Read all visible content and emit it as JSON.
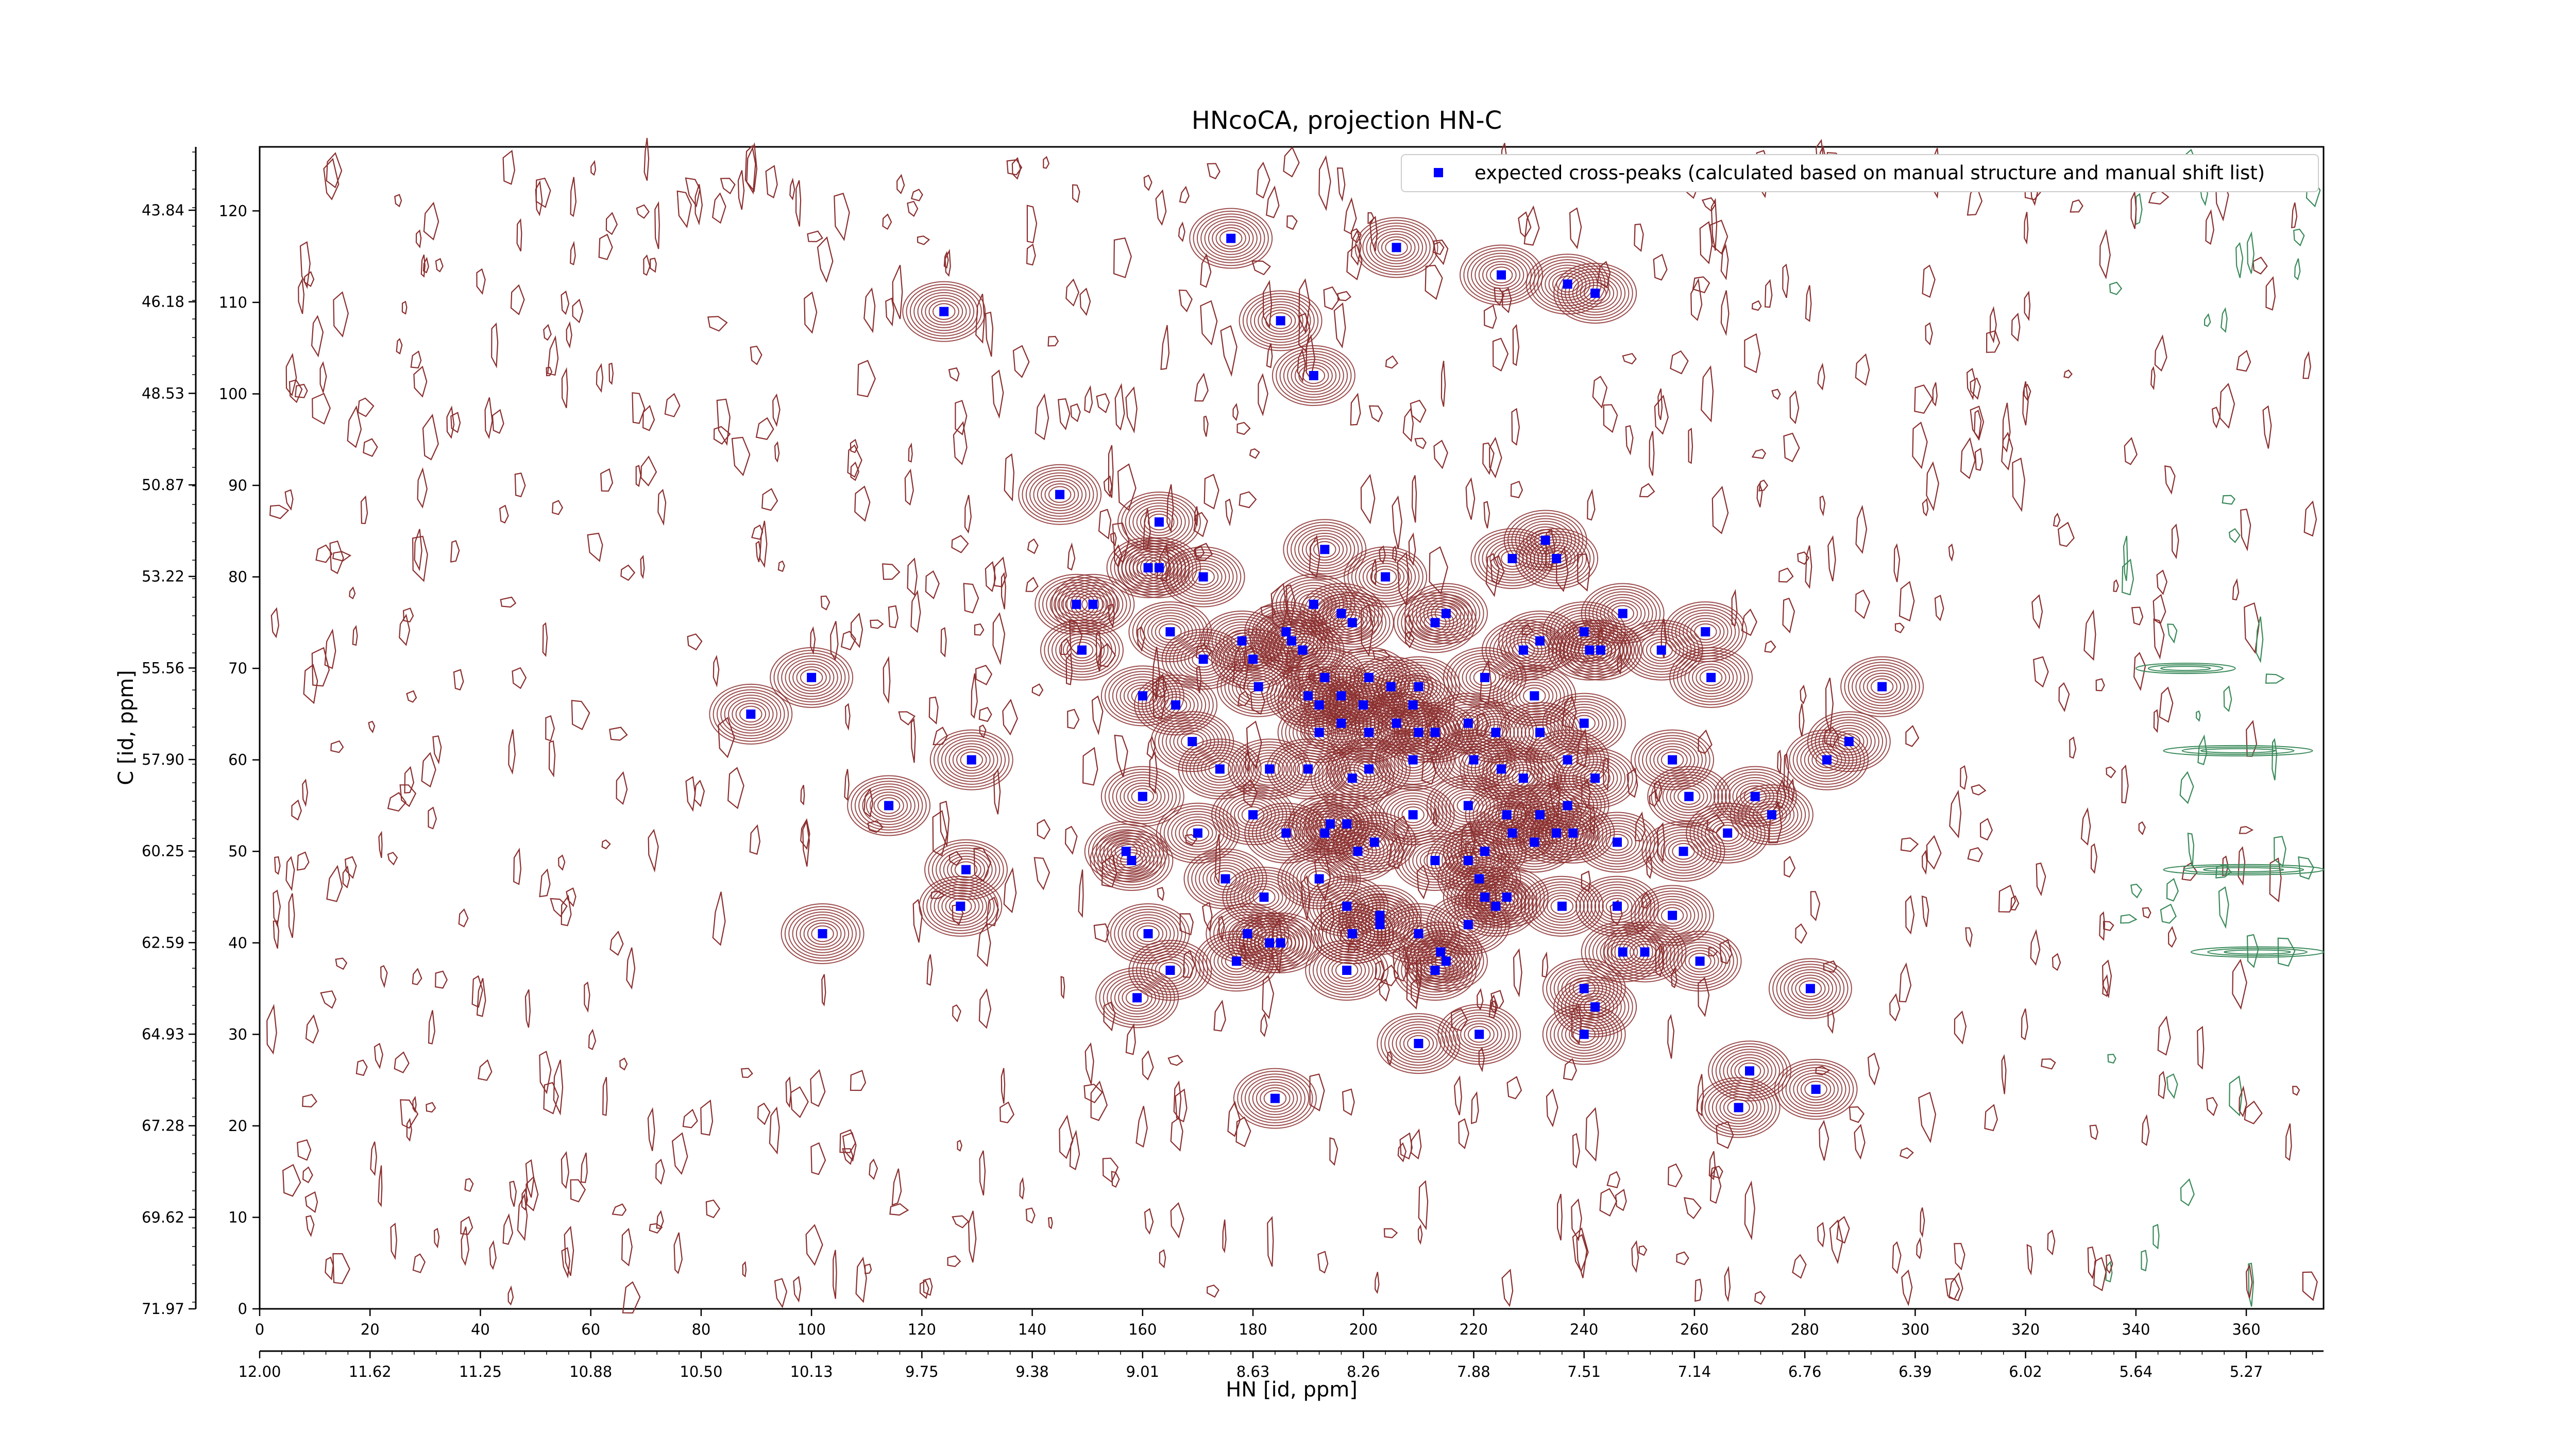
{
  "chart_data": {
    "type": "scatter",
    "title": "HNcoCA, projection HN-C",
    "xlabel": "HN [id, ppm]",
    "ylabel": "C [id, ppm]",
    "xlim": [
      0,
      374
    ],
    "ylim": [
      0,
      127
    ],
    "x_ticks": [
      0,
      20,
      40,
      60,
      80,
      100,
      120,
      140,
      160,
      180,
      200,
      220,
      240,
      260,
      280,
      300,
      320,
      340,
      360
    ],
    "y_ticks": [
      0,
      10,
      20,
      30,
      40,
      50,
      60,
      70,
      80,
      90,
      100,
      110,
      120
    ],
    "secondary_x_ticks": [
      "12.00",
      "11.62",
      "11.25",
      "10.88",
      "10.50",
      "10.13",
      "9.75",
      "9.38",
      "9.01",
      "8.63",
      "8.26",
      "7.88",
      "7.51",
      "7.14",
      "6.76",
      "6.39",
      "6.02",
      "5.64",
      "5.27"
    ],
    "secondary_y_ticks": [
      "43.84",
      "46.18",
      "48.53",
      "50.87",
      "53.22",
      "55.56",
      "57.90",
      "60.25",
      "62.59",
      "64.93",
      "67.28",
      "69.62",
      "71.97"
    ],
    "legend": {
      "placement": "top-right",
      "entry": "expected cross-peaks (calculated based on manual structure and manual shift list)"
    },
    "colors": {
      "peak_marker": "#0000ff",
      "positive_contour": "#8b2e2e",
      "negative_contour": "#3a8a5a"
    },
    "series": [
      {
        "name": "expected cross-peaks (calculated based on manual structure and manual shift list)",
        "points": [
          [
            124,
            109
          ],
          [
            176,
            117
          ],
          [
            185,
            108
          ],
          [
            191,
            102
          ],
          [
            206,
            116
          ],
          [
            225,
            113
          ],
          [
            237,
            112
          ],
          [
            242,
            111
          ],
          [
            145,
            89
          ],
          [
            163,
            86
          ],
          [
            161,
            81
          ],
          [
            163,
            81
          ],
          [
            171,
            80
          ],
          [
            193,
            83
          ],
          [
            204,
            80
          ],
          [
            227,
            82
          ],
          [
            233,
            84
          ],
          [
            235,
            82
          ],
          [
            148,
            77
          ],
          [
            151,
            77
          ],
          [
            165,
            74
          ],
          [
            178,
            73
          ],
          [
            186,
            74
          ],
          [
            191,
            77
          ],
          [
            196,
            76
          ],
          [
            198,
            75
          ],
          [
            215,
            76
          ],
          [
            247,
            76
          ],
          [
            149,
            72
          ],
          [
            171,
            71
          ],
          [
            180,
            71
          ],
          [
            187,
            73
          ],
          [
            189,
            72
          ],
          [
            213,
            75
          ],
          [
            229,
            72
          ],
          [
            232,
            73
          ],
          [
            240,
            74
          ],
          [
            241,
            72
          ],
          [
            243,
            72
          ],
          [
            254,
            72
          ],
          [
            262,
            74
          ],
          [
            89,
            65
          ],
          [
            100,
            69
          ],
          [
            160,
            67
          ],
          [
            166,
            66
          ],
          [
            181,
            68
          ],
          [
            190,
            67
          ],
          [
            193,
            69
          ],
          [
            192,
            66
          ],
          [
            196,
            67
          ],
          [
            200,
            66
          ],
          [
            201,
            69
          ],
          [
            205,
            68
          ],
          [
            210,
            68
          ],
          [
            209,
            66
          ],
          [
            222,
            69
          ],
          [
            231,
            67
          ],
          [
            263,
            69
          ],
          [
            294,
            68
          ],
          [
            192,
            63
          ],
          [
            196,
            64
          ],
          [
            201,
            63
          ],
          [
            206,
            64
          ],
          [
            210,
            63
          ],
          [
            213,
            63
          ],
          [
            219,
            64
          ],
          [
            224,
            63
          ],
          [
            232,
            63
          ],
          [
            240,
            64
          ],
          [
            284,
            60
          ],
          [
            288,
            62
          ],
          [
            129,
            60
          ],
          [
            169,
            62
          ],
          [
            174,
            59
          ],
          [
            183,
            59
          ],
          [
            190,
            59
          ],
          [
            198,
            58
          ],
          [
            201,
            59
          ],
          [
            209,
            60
          ],
          [
            220,
            60
          ],
          [
            225,
            59
          ],
          [
            229,
            58
          ],
          [
            237,
            60
          ],
          [
            242,
            58
          ],
          [
            256,
            60
          ],
          [
            114,
            55
          ],
          [
            160,
            56
          ],
          [
            180,
            54
          ],
          [
            194,
            53
          ],
          [
            209,
            54
          ],
          [
            219,
            55
          ],
          [
            226,
            54
          ],
          [
            232,
            54
          ],
          [
            237,
            55
          ],
          [
            259,
            56
          ],
          [
            271,
            56
          ],
          [
            274,
            54
          ],
          [
            128,
            48
          ],
          [
            157,
            50
          ],
          [
            170,
            52
          ],
          [
            186,
            52
          ],
          [
            193,
            52
          ],
          [
            197,
            53
          ],
          [
            202,
            51
          ],
          [
            213,
            49
          ],
          [
            222,
            50
          ],
          [
            227,
            52
          ],
          [
            231,
            51
          ],
          [
            235,
            52
          ],
          [
            238,
            52
          ],
          [
            246,
            51
          ],
          [
            258,
            50
          ],
          [
            266,
            52
          ],
          [
            127,
            44
          ],
          [
            158,
            49
          ],
          [
            175,
            47
          ],
          [
            182,
            45
          ],
          [
            192,
            47
          ],
          [
            197,
            44
          ],
          [
            199,
            50
          ],
          [
            203,
            43
          ],
          [
            219,
            49
          ],
          [
            221,
            47
          ],
          [
            222,
            45
          ],
          [
            224,
            44
          ],
          [
            226,
            45
          ],
          [
            236,
            44
          ],
          [
            256,
            43
          ],
          [
            102,
            41
          ],
          [
            161,
            41
          ],
          [
            179,
            41
          ],
          [
            183,
            40
          ],
          [
            198,
            41
          ],
          [
            203,
            42
          ],
          [
            214,
            39
          ],
          [
            219,
            42
          ],
          [
            246,
            44
          ],
          [
            177,
            38
          ],
          [
            185,
            40
          ],
          [
            198,
            41
          ],
          [
            210,
            41
          ],
          [
            215,
            38
          ],
          [
            247,
            39
          ],
          [
            251,
            39
          ],
          [
            159,
            34
          ],
          [
            165,
            37
          ],
          [
            197,
            37
          ],
          [
            213,
            37
          ],
          [
            240,
            35
          ],
          [
            242,
            33
          ],
          [
            261,
            38
          ],
          [
            281,
            35
          ],
          [
            210,
            29
          ],
          [
            221,
            30
          ],
          [
            240,
            30
          ],
          [
            270,
            26
          ],
          [
            282,
            24
          ],
          [
            184,
            23
          ],
          [
            268,
            22
          ]
        ]
      }
    ]
  }
}
